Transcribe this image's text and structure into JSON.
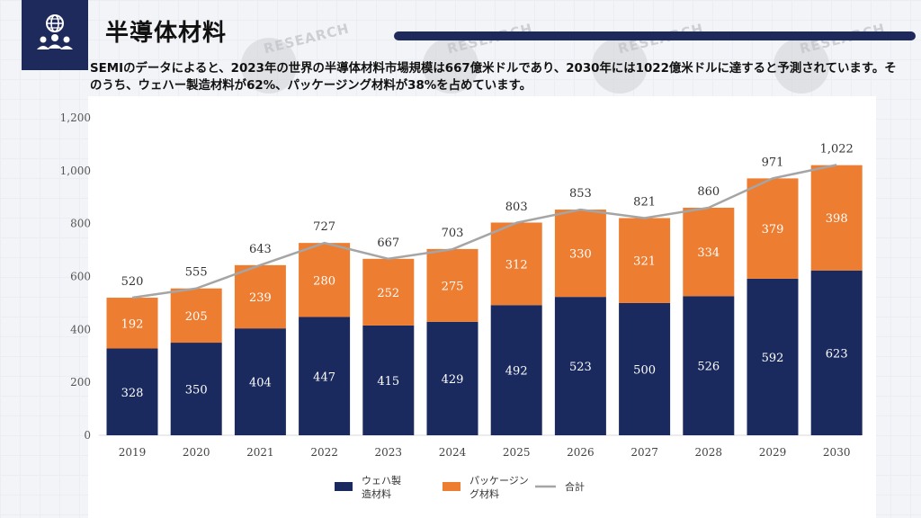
{
  "header": {
    "title": "半導体材料",
    "description": "SEMIのデータによると、2023年の世界の半導体材料市場規模は667億米ドルであり、2030年には1022億米ドルに達すると予測されています。そのうち、ウェハー製造材料が62%、パッケージング材料が38%を占めています。",
    "watermark_text": "RESEARCH"
  },
  "logo": {
    "icon": "globe-people-icon"
  },
  "colors": {
    "navy": "#1b2a5e",
    "orange": "#ed7d31",
    "line": "#a5a5a5",
    "brand": "#1f2a5c"
  },
  "chart_data": {
    "type": "bar",
    "stacked": true,
    "categories": [
      "2019",
      "2020",
      "2021",
      "2022",
      "2023",
      "2024",
      "2025",
      "2026",
      "2027",
      "2028",
      "2029",
      "2030"
    ],
    "series": [
      {
        "name": "ウェハ製造材料",
        "values": [
          328,
          350,
          404,
          447,
          415,
          429,
          492,
          523,
          500,
          526,
          592,
          623
        ],
        "color": "#1b2a5e"
      },
      {
        "name": "パッケージング材料",
        "values": [
          192,
          205,
          239,
          280,
          252,
          275,
          312,
          330,
          321,
          334,
          379,
          398
        ],
        "color": "#ed7d31"
      }
    ],
    "total": {
      "name": "合計",
      "type": "line",
      "values": [
        520,
        555,
        643,
        727,
        667,
        703,
        803,
        853,
        821,
        860,
        971,
        1022
      ],
      "labels": [
        "520",
        "555",
        "643",
        "727",
        "667",
        "703",
        "803",
        "853",
        "821",
        "860",
        "971",
        "1,022"
      ],
      "color": "#a5a5a5"
    },
    "yticks": [
      "0",
      "200",
      "400",
      "600",
      "800",
      "1,000",
      "1,200"
    ],
    "ylim": [
      0,
      1200
    ],
    "grid": false,
    "legend_position": "bottom",
    "legend": [
      "ウェハ製造材料",
      "パッケージング材料",
      "合計"
    ]
  }
}
